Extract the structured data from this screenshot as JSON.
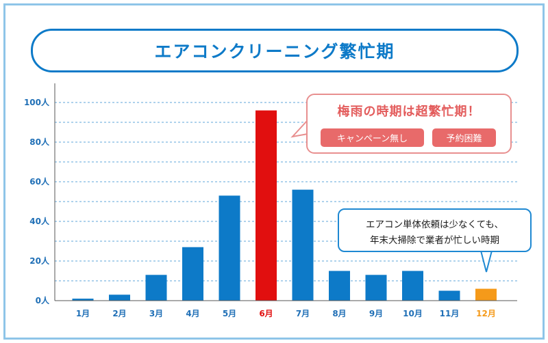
{
  "page": {
    "title": "エアコンクリーニング繁忙期"
  },
  "colors": {
    "frame": "#8ec5e8",
    "primary": "#0d7ac8",
    "highlight": "#e10f0f",
    "accent": "#f59a1a",
    "callout_red": "#e86a6a",
    "tick_text": "#1f6fb6"
  },
  "callouts": {
    "peak": {
      "title": "梅雨の時期は超繁忙期！",
      "tags": [
        "キャンペーン無し",
        "予約困難"
      ]
    },
    "december": {
      "lines": [
        "エアコン単体依頼は少なくても、",
        "年末大掃除で業者が忙しい時期"
      ]
    }
  },
  "chart_data": {
    "type": "bar",
    "title": "エアコンクリーニング繁忙期",
    "categories": [
      "1月",
      "2月",
      "3月",
      "4月",
      "5月",
      "6月",
      "7月",
      "8月",
      "9月",
      "10月",
      "11月",
      "12月"
    ],
    "values": [
      1,
      3,
      13,
      27,
      53,
      96,
      56,
      15,
      13,
      15,
      5,
      6
    ],
    "bar_colors": [
      "#0d7ac8",
      "#0d7ac8",
      "#0d7ac8",
      "#0d7ac8",
      "#0d7ac8",
      "#e10f0f",
      "#0d7ac8",
      "#0d7ac8",
      "#0d7ac8",
      "#0d7ac8",
      "#0d7ac8",
      "#f59a1a"
    ],
    "label_colors": [
      "#1f6fb6",
      "#1f6fb6",
      "#1f6fb6",
      "#1f6fb6",
      "#1f6fb6",
      "#e10f0f",
      "#1f6fb6",
      "#1f6fb6",
      "#1f6fb6",
      "#1f6fb6",
      "#1f6fb6",
      "#f59a1a"
    ],
    "y_ticks": [
      0,
      20,
      40,
      60,
      80,
      100
    ],
    "y_tick_labels": [
      "0人",
      "20人",
      "40人",
      "60人",
      "80人",
      "100人"
    ],
    "ylim": [
      0,
      100
    ],
    "xlabel": "",
    "ylabel": "",
    "grid": true,
    "grid_style": "dashed",
    "legend": "none"
  }
}
